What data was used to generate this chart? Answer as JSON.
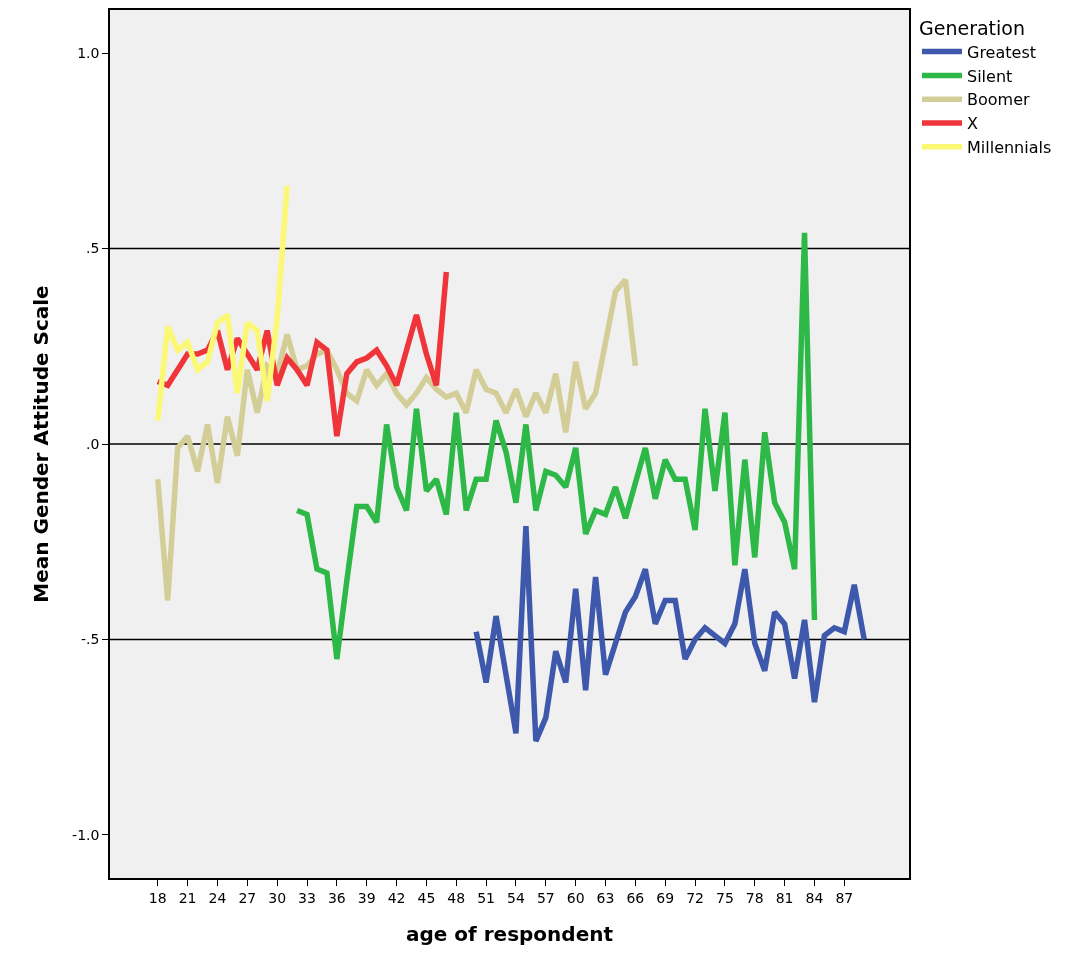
{
  "chart_data": {
    "type": "line",
    "xlabel": "age of respondent",
    "ylabel": "Mean Gender Attitude Scale",
    "legend_title": "Generation",
    "legend": "right",
    "grid": false,
    "marker": "none",
    "line_style": "solid",
    "xlim": [
      13.2,
      93.5
    ],
    "xticks": [
      18,
      21,
      24,
      27,
      30,
      33,
      36,
      39,
      42,
      45,
      48,
      51,
      54,
      57,
      60,
      63,
      66,
      69,
      72,
      75,
      78,
      81,
      84,
      87
    ],
    "ylim": [
      -1.11,
      1.11
    ],
    "yticks": [
      {
        "value": 1,
        "label": "1.0"
      },
      {
        "value": 0.5,
        "label": ".5"
      },
      {
        "value": 0,
        "label": ".0"
      },
      {
        "value": -0.5,
        "label": "-.5"
      },
      {
        "value": -1,
        "label": "-1.0"
      }
    ],
    "ref_lines": [
      {
        "axis": "y",
        "value": 0.5,
        "color": "#000000"
      },
      {
        "axis": "y",
        "value": 0,
        "color": "#000000"
      },
      {
        "axis": "y",
        "value": -0.5,
        "color": "#000000"
      }
    ],
    "series": [
      {
        "name": "Greatest",
        "color": "#3e58ac",
        "x": [
          50,
          51,
          52,
          53,
          54,
          55,
          56,
          57,
          58,
          59,
          60,
          61,
          62,
          63,
          64,
          65,
          66,
          67,
          68,
          69,
          70,
          71,
          72,
          73,
          74,
          75,
          76,
          77,
          78,
          79,
          80,
          81,
          82,
          83,
          84,
          85,
          86,
          87,
          88,
          89
        ],
        "values": [
          -0.48,
          -0.61,
          -0.44,
          -0.59,
          -0.74,
          -0.21,
          -0.76,
          -0.7,
          -0.53,
          -0.61,
          -0.37,
          -0.63,
          -0.34,
          -0.59,
          -0.51,
          -0.43,
          -0.39,
          -0.32,
          -0.46,
          -0.4,
          -0.4,
          -0.55,
          -0.5,
          -0.47,
          -0.49,
          -0.51,
          -0.46,
          -0.32,
          -0.51,
          -0.58,
          -0.43,
          -0.46,
          -0.6,
          -0.45,
          -0.66,
          -0.49,
          -0.47,
          -0.48,
          -0.36,
          -0.5
        ]
      },
      {
        "name": "Silent",
        "color": "#2eb848",
        "x": [
          32,
          33,
          34,
          35,
          36,
          37,
          38,
          39,
          40,
          41,
          42,
          43,
          44,
          45,
          46,
          47,
          48,
          49,
          50,
          51,
          52,
          53,
          54,
          55,
          56,
          57,
          58,
          59,
          60,
          61,
          62,
          63,
          64,
          65,
          66,
          67,
          68,
          69,
          70,
          71,
          72,
          73,
          74,
          75,
          76,
          77,
          78,
          79,
          80,
          81,
          82,
          83,
          84
        ],
        "values": [
          -0.17,
          -0.18,
          -0.32,
          -0.33,
          -0.55,
          -0.35,
          -0.16,
          -0.16,
          -0.2,
          0.05,
          -0.11,
          -0.17,
          0.09,
          -0.12,
          -0.09,
          -0.18,
          0.08,
          -0.17,
          -0.09,
          -0.09,
          0.06,
          -0.02,
          -0.15,
          0.05,
          -0.17,
          -0.07,
          -0.08,
          -0.11,
          -0.01,
          -0.23,
          -0.17,
          -0.18,
          -0.11,
          -0.19,
          -0.1,
          -0.01,
          -0.14,
          -0.04,
          -0.09,
          -0.09,
          -0.22,
          0.09,
          -0.12,
          0.08,
          -0.31,
          -0.04,
          -0.29,
          0.03,
          -0.15,
          -0.2,
          -0.32,
          0.54,
          -0.45
        ]
      },
      {
        "name": "Boomer",
        "color": "#d3ce97",
        "x": [
          18,
          19,
          20,
          21,
          22,
          23,
          24,
          25,
          26,
          27,
          28,
          29,
          30,
          31,
          32,
          33,
          34,
          35,
          36,
          37,
          38,
          39,
          40,
          41,
          42,
          43,
          44,
          45,
          46,
          47,
          48,
          49,
          50,
          51,
          52,
          53,
          54,
          55,
          56,
          57,
          58,
          59,
          60,
          61,
          62,
          63,
          64,
          65,
          66
        ],
        "values": [
          -0.09,
          -0.4,
          -0.01,
          0.02,
          -0.07,
          0.05,
          -0.1,
          0.07,
          -0.03,
          0.19,
          0.08,
          0.2,
          0.18,
          0.28,
          0.19,
          0.2,
          0.23,
          0.24,
          0.19,
          0.13,
          0.11,
          0.19,
          0.15,
          0.18,
          0.13,
          0.1,
          0.13,
          0.17,
          0.14,
          0.12,
          0.13,
          0.08,
          0.19,
          0.14,
          0.13,
          0.08,
          0.14,
          0.07,
          0.13,
          0.08,
          0.18,
          0.03,
          0.21,
          0.09,
          0.13,
          0.26,
          0.39,
          0.42,
          0.2
        ]
      },
      {
        "name": "X",
        "color": "#ef343a",
        "x": [
          18,
          19,
          20,
          21,
          22,
          23,
          24,
          25,
          26,
          27,
          28,
          29,
          30,
          31,
          32,
          33,
          34,
          35,
          36,
          37,
          38,
          39,
          40,
          41,
          42,
          43,
          44,
          45,
          46,
          47
        ],
        "values": [
          0.16,
          0.15,
          0.19,
          0.23,
          0.23,
          0.24,
          0.29,
          0.19,
          0.27,
          0.23,
          0.19,
          0.29,
          0.15,
          0.22,
          0.19,
          0.15,
          0.26,
          0.24,
          0.02,
          0.18,
          0.21,
          0.22,
          0.24,
          0.2,
          0.15,
          0.24,
          0.33,
          0.23,
          0.15,
          0.44
        ]
      },
      {
        "name": "Millennials",
        "color": "#fbf873",
        "x": [
          18,
          19,
          20,
          21,
          22,
          23,
          24,
          25,
          26,
          27,
          28,
          29,
          30,
          31
        ],
        "values": [
          0.06,
          0.3,
          0.24,
          0.26,
          0.19,
          0.21,
          0.31,
          0.33,
          0.13,
          0.31,
          0.29,
          0.11,
          0.32,
          0.66
        ]
      }
    ]
  }
}
